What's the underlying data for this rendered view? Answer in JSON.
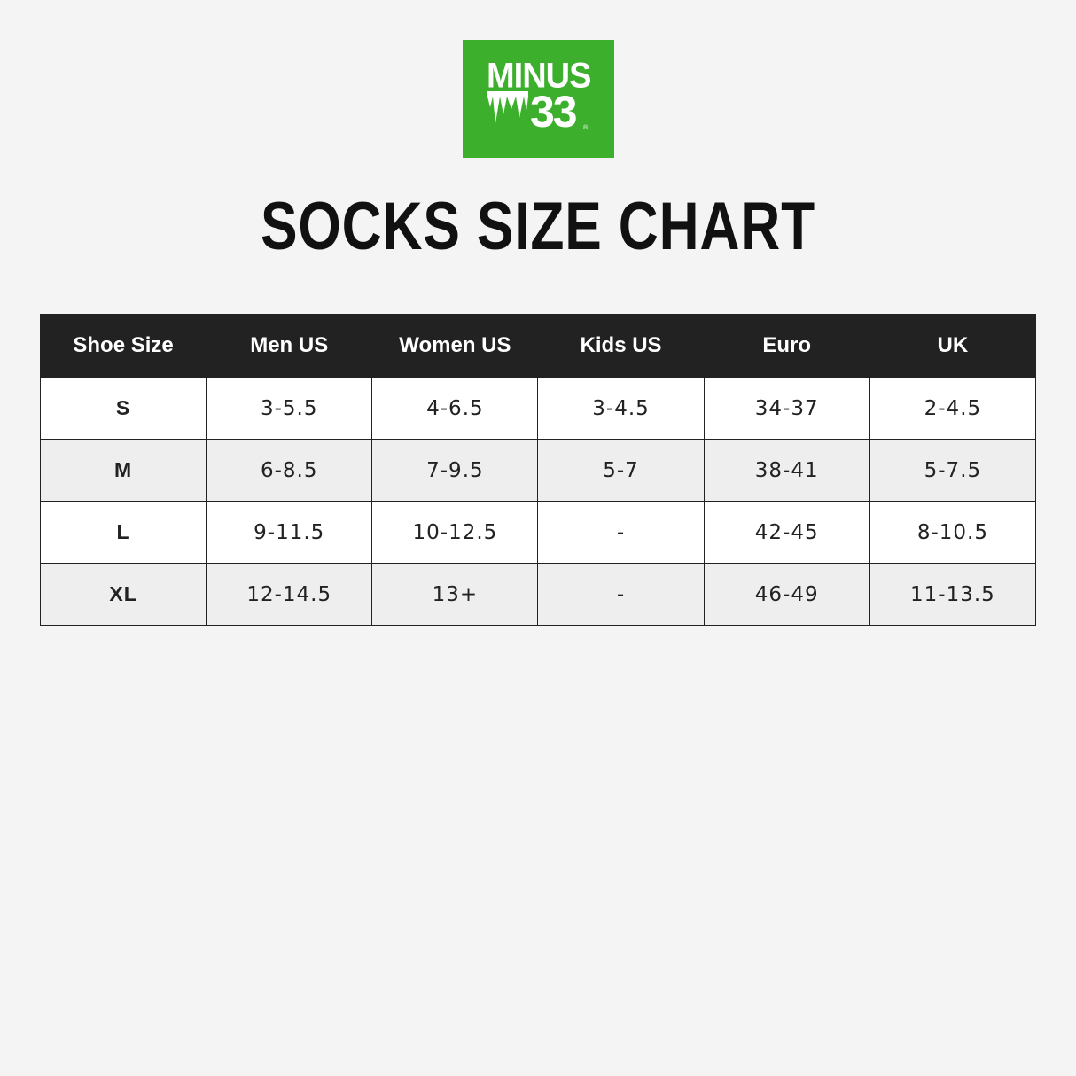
{
  "logo": {
    "line1": "MINUS",
    "line2": "33",
    "mark": "®",
    "color": "#3cb02c"
  },
  "title": "SOCKS SIZE CHART",
  "table": {
    "headers": [
      "Shoe Size",
      "Men US",
      "Women US",
      "Kids US",
      "Euro",
      "UK"
    ],
    "rows": [
      [
        "S",
        "3-5.5",
        "4-6.5",
        "3-4.5",
        "34-37",
        "2-4.5"
      ],
      [
        "M",
        "6-8.5",
        "7-9.5",
        "5-7",
        "38-41",
        "5-7.5"
      ],
      [
        "L",
        "9-11.5",
        "10-12.5",
        "-",
        "42-45",
        "8-10.5"
      ],
      [
        "XL",
        "12-14.5",
        "13+",
        "-",
        "46-49",
        "11-13.5"
      ]
    ]
  }
}
